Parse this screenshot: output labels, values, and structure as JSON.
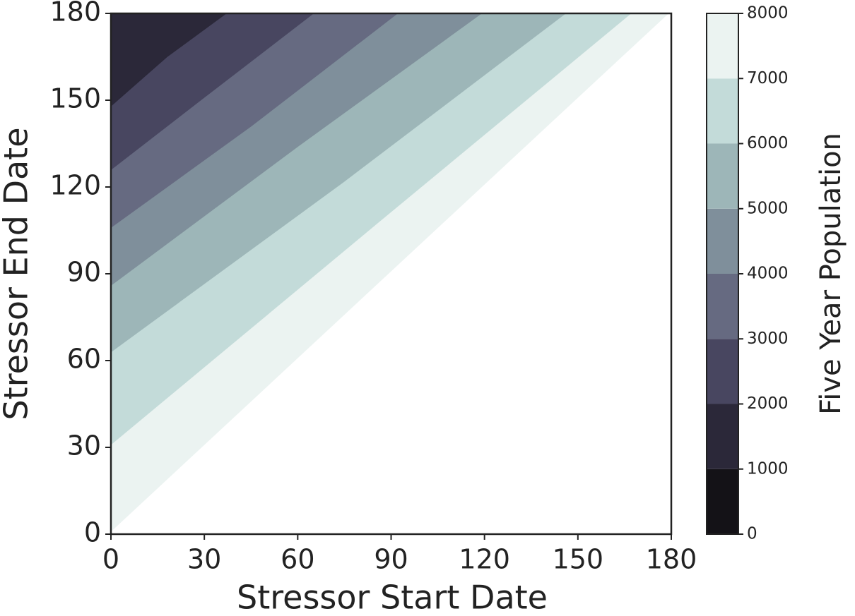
{
  "chart_data": {
    "type": "contour",
    "xlabel": "Stressor Start Date",
    "ylabel": "Stressor End Date",
    "xlim": [
      0,
      180
    ],
    "ylim": [
      0,
      180
    ],
    "xticks": [
      0,
      30,
      60,
      90,
      120,
      150,
      180
    ],
    "yticks": [
      0,
      30,
      60,
      90,
      120,
      150,
      180
    ],
    "contours": [
      {
        "x": [
          0,
          18,
          37
        ],
        "y": [
          148,
          165,
          180
        ]
      },
      {
        "x": [
          0,
          30,
          65
        ],
        "y": [
          126,
          151,
          180
        ]
      },
      {
        "x": [
          0,
          45,
          92
        ],
        "y": [
          106,
          141,
          180
        ]
      },
      {
        "x": [
          0,
          60,
          119
        ],
        "y": [
          86,
          134,
          180
        ]
      },
      {
        "x": [
          0,
          75,
          146
        ],
        "y": [
          63,
          122,
          180
        ]
      },
      {
        "x": [
          0,
          85,
          167
        ],
        "y": [
          31,
          107,
          180
        ]
      },
      {
        "x": [
          0,
          90,
          179
        ],
        "y": [
          1,
          91,
          180
        ]
      }
    ],
    "colorbar": {
      "label": "Five Year Population",
      "ticks": [
        0,
        1000,
        2000,
        3000,
        4000,
        5000,
        6000,
        7000,
        8000
      ],
      "colors": [
        "#141217",
        "#2b2839",
        "#484660",
        "#666a81",
        "#7f8f9b",
        "#9db6b8",
        "#c3dbd9",
        "#ebf3f1"
      ]
    }
  }
}
